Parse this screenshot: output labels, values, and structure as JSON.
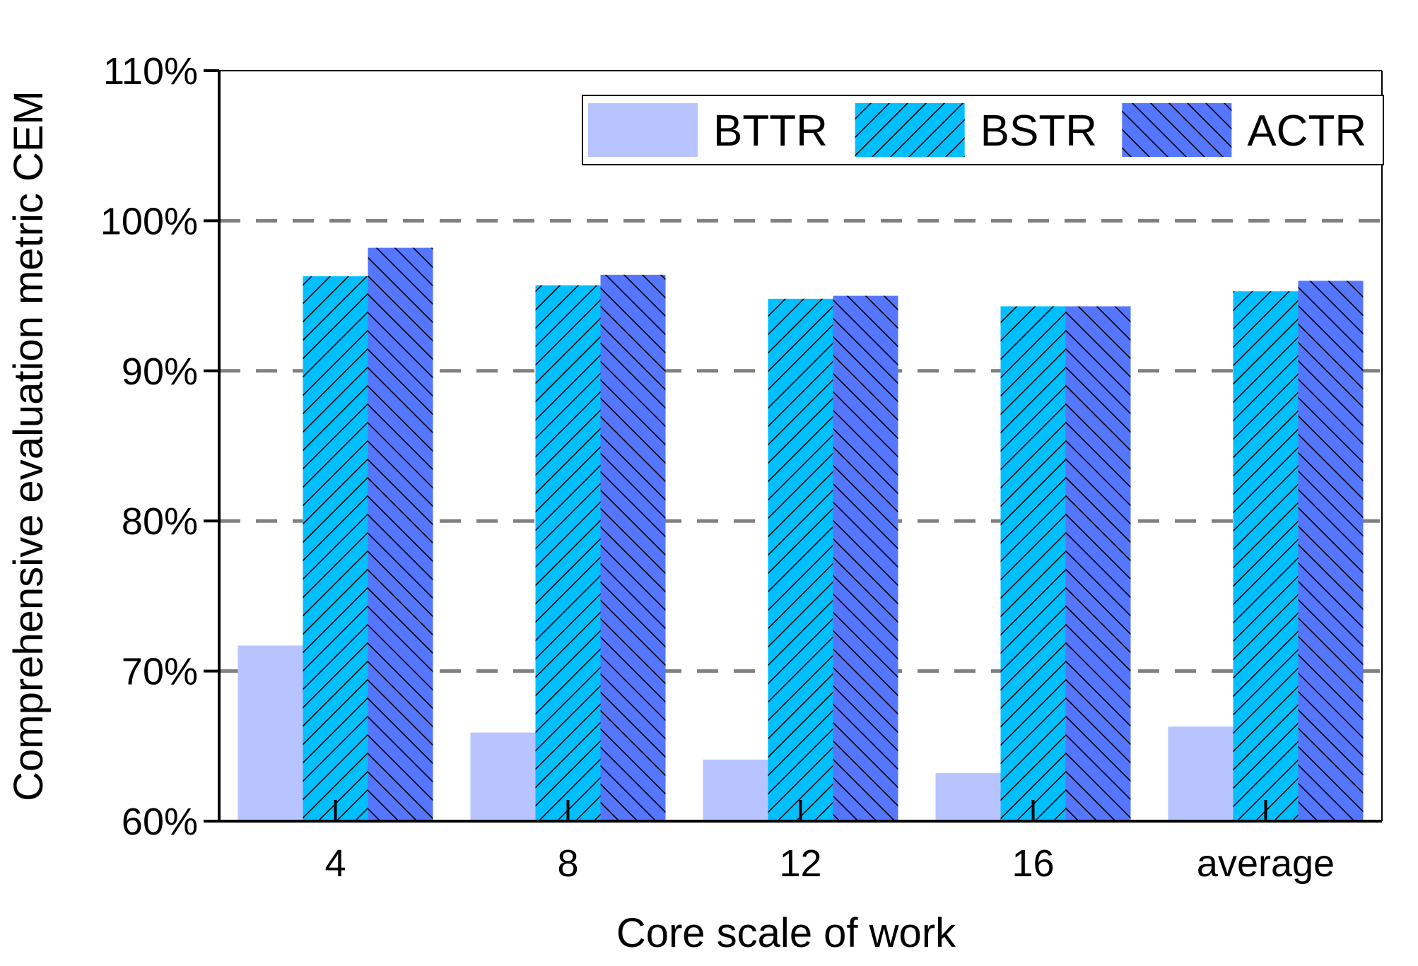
{
  "chart_data": {
    "type": "bar",
    "title": "",
    "xlabel": "Core scale of work",
    "ylabel": "Comprehensive evaluation metric CEM",
    "categories": [
      "4",
      "8",
      "12",
      "16",
      "average"
    ],
    "series": [
      {
        "name": "BTTR",
        "values": [
          71.7,
          65.9,
          64.1,
          63.2,
          66.3
        ],
        "color": "#b8c4ff",
        "pattern": "none"
      },
      {
        "name": "BSTR",
        "values": [
          96.3,
          95.7,
          94.8,
          94.3,
          95.3
        ],
        "color": "#00bfff",
        "pattern": "forward-hatch"
      },
      {
        "name": "ACTR",
        "values": [
          98.2,
          96.4,
          95.0,
          94.3,
          96.0
        ],
        "color": "#5577ff",
        "pattern": "backward-hatch"
      }
    ],
    "ylim": [
      60,
      110
    ],
    "yticks": [
      60,
      70,
      80,
      90,
      100,
      110
    ],
    "ytick_labels": [
      "60%",
      "70%",
      "80%",
      "90%",
      "100%",
      "110%"
    ],
    "gridlines": [
      70,
      80,
      90,
      100
    ],
    "grid_style": "dashed",
    "legend_position": "top-right"
  }
}
